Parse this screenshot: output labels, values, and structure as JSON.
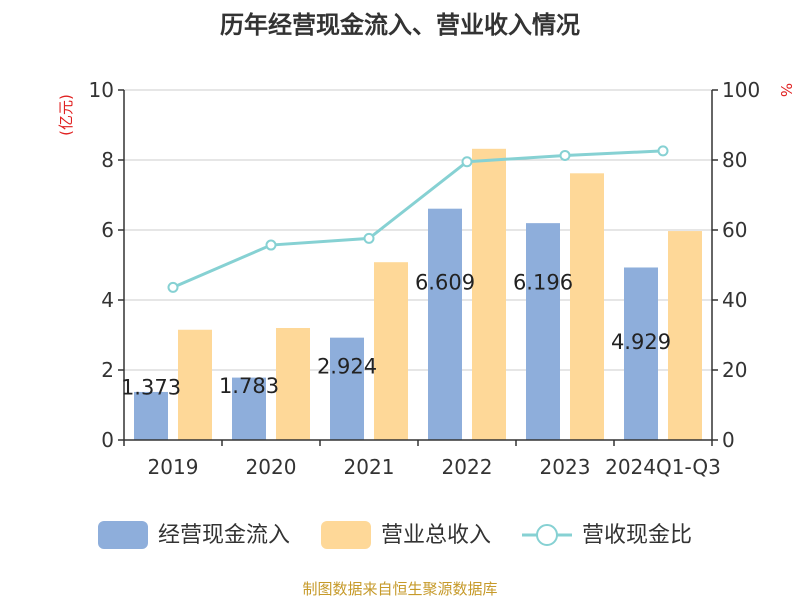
{
  "chart_data": {
    "type": "bar",
    "title": "历年经营现金流入、营业收入情况",
    "categories": [
      "2019",
      "2020",
      "2021",
      "2022",
      "2023",
      "2024Q1-Q3"
    ],
    "left_axis": {
      "unit": "(亿元)",
      "range": [
        0,
        10
      ],
      "ticks": [
        "0",
        "2",
        "4",
        "6",
        "8",
        "10"
      ]
    },
    "right_axis": {
      "unit": "%",
      "range": [
        0,
        100
      ],
      "ticks": [
        "0",
        "20",
        "40",
        "60",
        "80",
        "100"
      ]
    },
    "series": [
      {
        "name": "经营现金流入",
        "type": "bar",
        "axis": "left",
        "color": "#8eaedb",
        "values": [
          1.373,
          1.783,
          2.924,
          6.609,
          6.196,
          4.929
        ],
        "labels": [
          "1.373",
          "1.783",
          "2.924",
          "6.609",
          "6.196",
          "4.929"
        ]
      },
      {
        "name": "营业总收入",
        "type": "bar",
        "axis": "left",
        "color": "#fed898",
        "values": [
          3.15,
          3.2,
          5.08,
          8.32,
          7.62,
          5.97
        ]
      },
      {
        "name": "营收现金比",
        "type": "line",
        "axis": "right",
        "color": "#86d1d3",
        "values": [
          43.6,
          55.7,
          57.6,
          79.5,
          81.3,
          82.6
        ]
      }
    ],
    "legend_position": "bottom",
    "grid": true
  },
  "footer": {
    "source": "制图数据来自恒生聚源数据库"
  }
}
